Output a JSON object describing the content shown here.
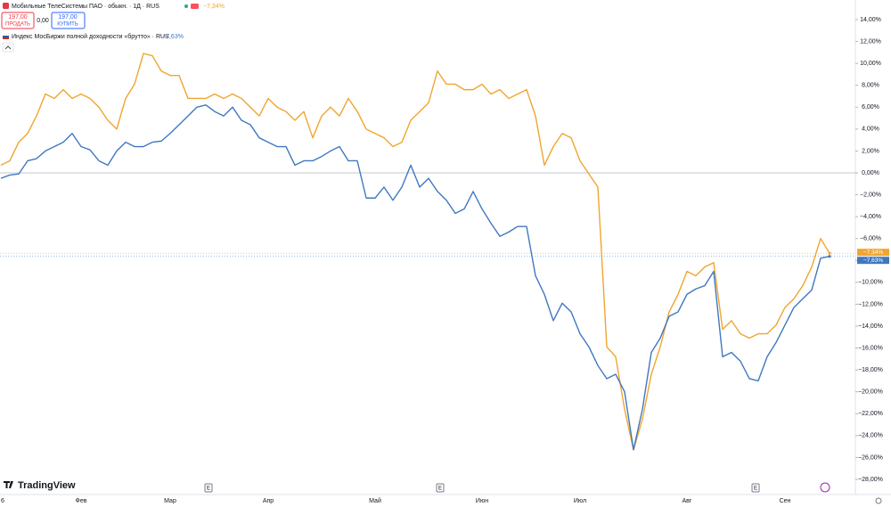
{
  "chart_data": {
    "type": "line",
    "categories": [
      "6",
      null,
      null,
      null,
      null,
      null,
      null,
      null,
      null,
      "Фев",
      null,
      null,
      null,
      null,
      null,
      null,
      null,
      null,
      null,
      "Мар",
      null,
      null,
      null,
      null,
      null,
      null,
      null,
      null,
      null,
      null,
      "Апр",
      null,
      null,
      null,
      null,
      null,
      null,
      null,
      null,
      null,
      null,
      null,
      "Май",
      null,
      null,
      null,
      null,
      null,
      null,
      null,
      null,
      null,
      null,
      null,
      "Июн",
      null,
      null,
      null,
      null,
      null,
      null,
      null,
      null,
      null,
      null,
      "Июл",
      null,
      null,
      null,
      null,
      null,
      null,
      null,
      null,
      null,
      null,
      null,
      "Авг",
      null,
      null,
      null,
      null,
      null,
      null,
      null,
      null,
      null,
      null,
      "Сен",
      null,
      null,
      null,
      null,
      null
    ],
    "series": [
      {
        "name": "Мобильные ТелеСистемы ПАО · обыкн. · 1Д · RUS",
        "color": "#f0a530",
        "last_label": "−7,34%",
        "values": [
          0.7,
          1.1,
          2.8,
          3.6,
          5.2,
          7.2,
          6.8,
          7.6,
          6.8,
          7.2,
          6.8,
          6.0,
          4.8,
          4.0,
          6.8,
          8.1,
          10.9,
          10.7,
          9.3,
          8.9,
          8.9,
          6.8,
          6.8,
          6.8,
          7.2,
          6.8,
          7.2,
          6.8,
          6.0,
          5.2,
          6.8,
          6.0,
          5.6,
          4.8,
          5.6,
          3.2,
          5.2,
          6.0,
          5.2,
          6.8,
          5.6,
          4.0,
          3.6,
          3.2,
          2.4,
          2.8,
          4.8,
          5.6,
          6.4,
          9.3,
          8.1,
          8.1,
          7.6,
          7.6,
          8.1,
          7.2,
          7.6,
          6.8,
          7.2,
          7.6,
          5.2,
          0.7,
          2.4,
          3.6,
          3.2,
          1.1,
          -0.1,
          -1.3,
          -15.9,
          -16.8,
          -21.6,
          -25.3,
          -22.5,
          -18.4,
          -15.9,
          -12.7,
          -11.1,
          -9.0,
          -9.4,
          -8.6,
          -8.2,
          -14.3,
          -13.5,
          -14.7,
          -15.1,
          -14.7,
          -14.7,
          -13.9,
          -12.3,
          -11.5,
          -10.3,
          -8.6,
          -6.0,
          -7.34
        ]
      },
      {
        "name": "Индекс МосБиржи полной доходности «брутто» · RUS",
        "color": "#3f78c0",
        "last_label": "−7,63%",
        "values": [
          -0.5,
          -0.2,
          -0.1,
          1.1,
          1.3,
          2.0,
          2.4,
          2.8,
          3.6,
          2.4,
          2.1,
          1.1,
          0.7,
          2.0,
          2.8,
          2.4,
          2.4,
          2.8,
          2.9,
          3.6,
          4.4,
          5.2,
          6.0,
          6.2,
          5.6,
          5.2,
          6.0,
          4.8,
          4.4,
          3.2,
          2.8,
          2.4,
          2.4,
          0.7,
          1.1,
          1.1,
          1.5,
          2.0,
          2.4,
          1.1,
          1.1,
          -2.3,
          -2.3,
          -1.3,
          -2.5,
          -1.3,
          0.7,
          -1.3,
          -0.5,
          -1.7,
          -2.5,
          -3.7,
          -3.3,
          -1.7,
          -3.3,
          -4.6,
          -5.8,
          -5.4,
          -4.9,
          -4.9,
          -9.4,
          -11.1,
          -13.5,
          -11.9,
          -12.7,
          -14.7,
          -15.9,
          -17.6,
          -18.8,
          -18.4,
          -20.0,
          -25.3,
          -21.6,
          -16.4,
          -15.1,
          -13.1,
          -12.7,
          -11.1,
          -10.6,
          -10.3,
          -9.0,
          -16.8,
          -16.4,
          -17.2,
          -18.8,
          -19.0,
          -16.8,
          -15.5,
          -13.9,
          -12.3,
          -11.5,
          -10.7,
          -7.8,
          -7.63
        ]
      }
    ],
    "ylim": [
      14,
      -28
    ],
    "yticks": [
      {
        "value": 14,
        "label": "14,00%"
      },
      {
        "value": 12,
        "label": "12,00%"
      },
      {
        "value": 10,
        "label": "10,00%"
      },
      {
        "value": 8,
        "label": "8,00%"
      },
      {
        "value": 6,
        "label": "6,00%"
      },
      {
        "value": 4,
        "label": "4,00%"
      },
      {
        "value": 2,
        "label": "2,00%"
      },
      {
        "value": 0,
        "label": "0,00%"
      },
      {
        "value": -2,
        "label": "−2,00%"
      },
      {
        "value": -4,
        "label": "−4,00%"
      },
      {
        "value": -6,
        "label": "−6,00%"
      },
      {
        "value": -8,
        "label": "−8,00%"
      },
      {
        "value": -10,
        "label": "−10,00%"
      },
      {
        "value": -12,
        "label": "−12,00%"
      },
      {
        "value": -14,
        "label": "−14,00%"
      },
      {
        "value": -16,
        "label": "−16,00%"
      },
      {
        "value": -18,
        "label": "−18,00%"
      },
      {
        "value": -20,
        "label": "−20,00%"
      },
      {
        "value": -22,
        "label": "−22,00%"
      },
      {
        "value": -24,
        "label": "−24,00%"
      },
      {
        "value": -26,
        "label": "−26,00%"
      },
      {
        "value": -28,
        "label": "−28,00%"
      }
    ],
    "grid": false,
    "event_markers": [
      "E",
      "E",
      "E"
    ]
  },
  "trade_panel": {
    "sell_price": "197,00",
    "sell_label": "ПРОДАТЬ",
    "spread": "0,00",
    "buy_price": "197,00",
    "buy_label": "КУПИТЬ"
  },
  "branding": "TradingView"
}
